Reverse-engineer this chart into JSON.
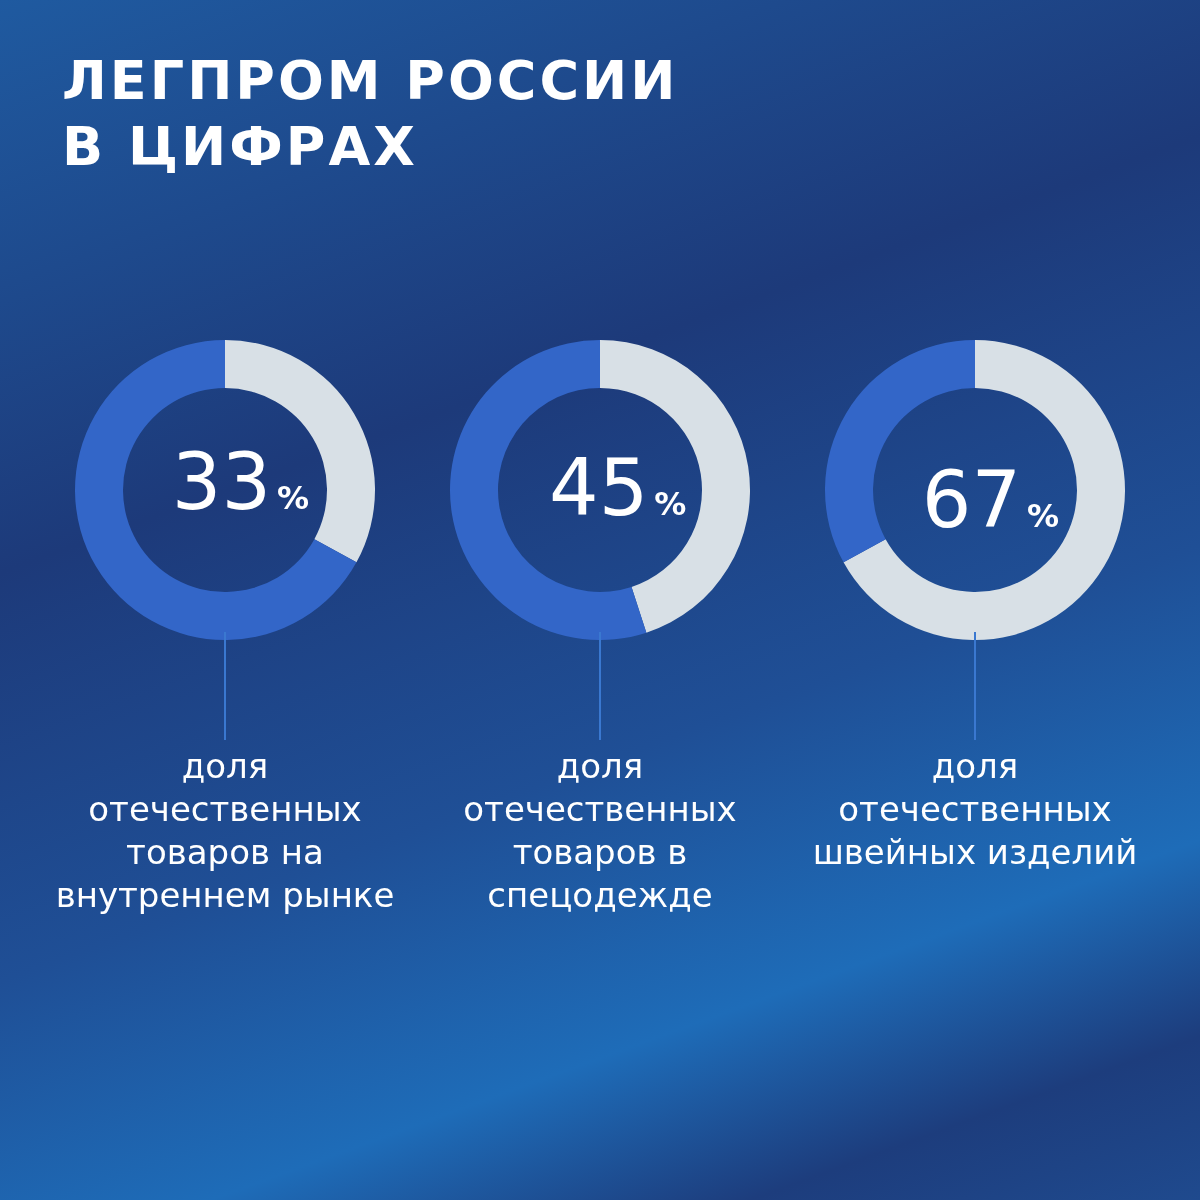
{
  "chart_data": [
    {
      "type": "donut",
      "title": "ЛЕГПРОМ РОССИИ В ЦИФРАХ",
      "categories": [
        null,
        null
      ],
      "values": [
        33,
        67
      ],
      "colors": [
        "#d8e0e6",
        "#3366c8"
      ],
      "value_labels": [
        "33%",
        null
      ],
      "annotations": [
        "доля отечественных товаров на внутреннем рынке"
      ]
    },
    {
      "type": "donut",
      "categories": [
        null,
        null
      ],
      "values": [
        45,
        55
      ],
      "colors": [
        "#d8e0e6",
        "#3366c8"
      ],
      "value_labels": [
        "45%",
        null
      ],
      "annotations": [
        "доля отечественных товаров в спецодежде"
      ]
    },
    {
      "type": "donut",
      "categories": [
        null,
        null
      ],
      "values": [
        67,
        33
      ],
      "colors": [
        "#d8e0e6",
        "#3366c8"
      ],
      "value_labels": [
        "67%",
        null
      ],
      "annotations": [
        "доля отечественных швейных изделий"
      ]
    }
  ]
}
